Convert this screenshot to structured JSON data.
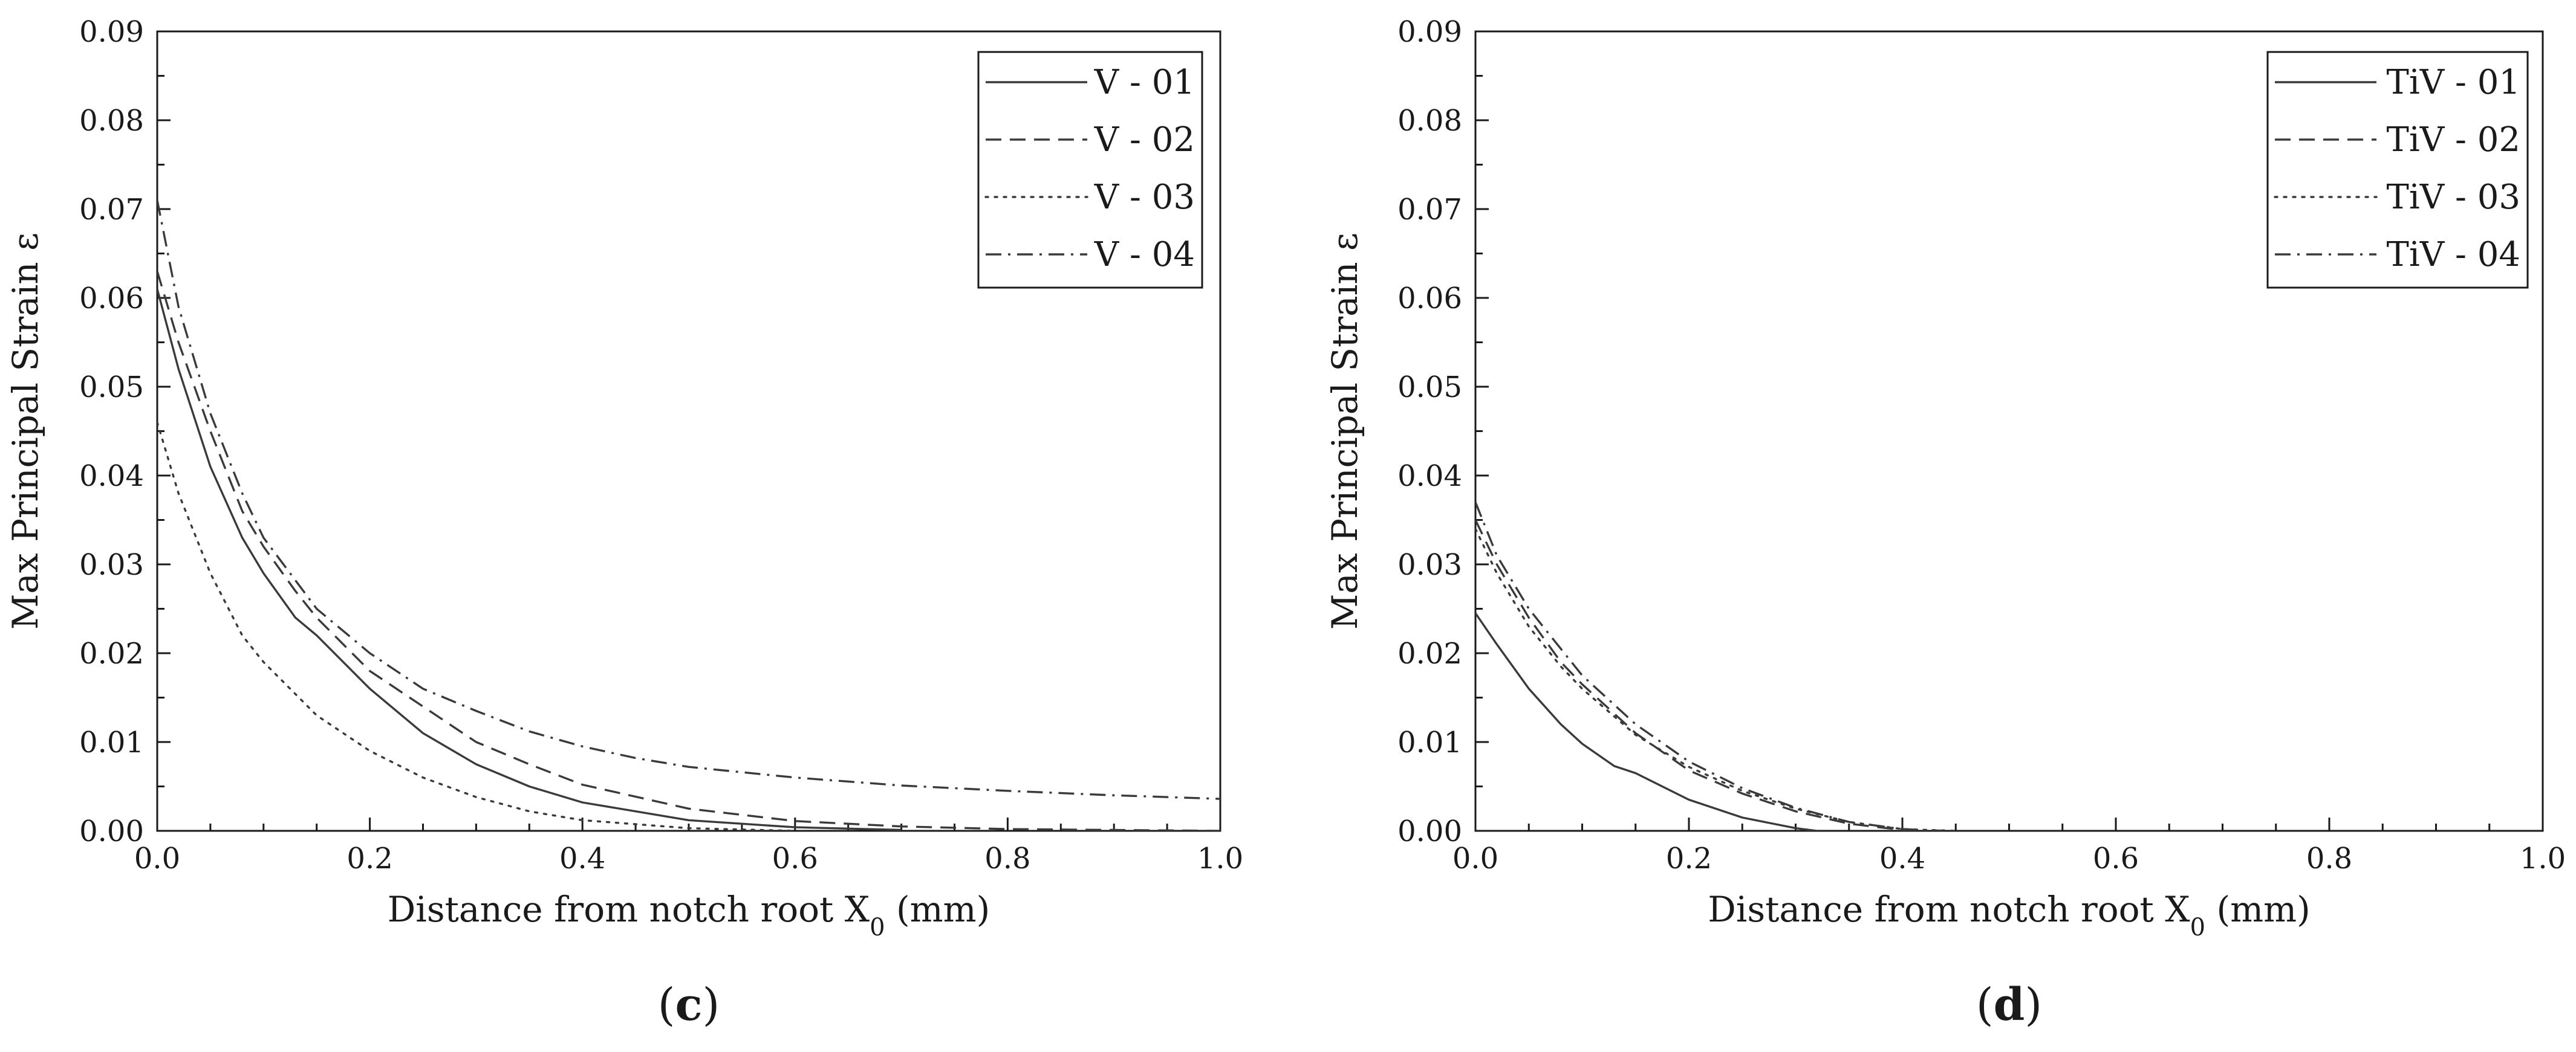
{
  "figure": {
    "panel_labels": [
      "c",
      "d"
    ]
  },
  "style": {
    "ink": "#3a3a3a",
    "axis": "#1a1a1a",
    "background": "#ffffff"
  },
  "chart_data": [
    {
      "id": "c",
      "type": "line",
      "panel_label": "c",
      "title": "",
      "xlabel": "Distance from notch root X",
      "xlabel_sub": "0",
      "xlabel_unit": " (mm)",
      "ylabel": "Max Principal Strain ε",
      "xlim": [
        0.0,
        1.0
      ],
      "ylim": [
        0.0,
        0.09
      ],
      "xticks": [
        0.0,
        0.2,
        0.4,
        0.6,
        0.8,
        1.0
      ],
      "xtick_labels": [
        "0.0",
        "0.2",
        "0.4",
        "0.6",
        "0.8",
        "1.0"
      ],
      "yticks": [
        0.0,
        0.01,
        0.02,
        0.03,
        0.04,
        0.05,
        0.06,
        0.07,
        0.08,
        0.09
      ],
      "ytick_labels": [
        "0.00",
        "0.01",
        "0.02",
        "0.03",
        "0.04",
        "0.05",
        "0.06",
        "0.07",
        "0.08",
        "0.09"
      ],
      "grid": false,
      "legend_position": "top-right",
      "series": [
        {
          "name": "V - 01",
          "dash": "solid",
          "x": [
            0.0,
            0.02,
            0.05,
            0.08,
            0.1,
            0.13,
            0.15,
            0.2,
            0.25,
            0.3,
            0.35,
            0.4,
            0.5,
            0.6,
            0.7
          ],
          "y": [
            0.061,
            0.052,
            0.041,
            0.033,
            0.029,
            0.024,
            0.022,
            0.016,
            0.011,
            0.0075,
            0.005,
            0.0032,
            0.0012,
            0.0004,
            0.0001
          ]
        },
        {
          "name": "V - 02",
          "dash": "dashed",
          "x": [
            0.0,
            0.02,
            0.05,
            0.08,
            0.1,
            0.13,
            0.15,
            0.2,
            0.25,
            0.3,
            0.35,
            0.4,
            0.5,
            0.6,
            0.7,
            0.8,
            1.0
          ],
          "y": [
            0.063,
            0.055,
            0.045,
            0.036,
            0.032,
            0.027,
            0.024,
            0.018,
            0.014,
            0.01,
            0.0075,
            0.0052,
            0.0025,
            0.0011,
            0.0005,
            0.0002,
            0.0
          ]
        },
        {
          "name": "V - 03",
          "dash": "dotted",
          "x": [
            0.0,
            0.02,
            0.05,
            0.08,
            0.1,
            0.15,
            0.2,
            0.25,
            0.3,
            0.35,
            0.4,
            0.5,
            0.6
          ],
          "y": [
            0.046,
            0.038,
            0.029,
            0.022,
            0.019,
            0.013,
            0.009,
            0.006,
            0.0038,
            0.0022,
            0.0012,
            0.0003,
            0.0
          ]
        },
        {
          "name": "V - 04",
          "dash": "dashdot",
          "x": [
            0.0,
            0.02,
            0.05,
            0.08,
            0.1,
            0.15,
            0.2,
            0.25,
            0.3,
            0.35,
            0.4,
            0.45,
            0.5,
            0.6,
            0.7,
            0.8,
            0.9,
            1.0
          ],
          "y": [
            0.071,
            0.059,
            0.047,
            0.038,
            0.033,
            0.025,
            0.02,
            0.016,
            0.0135,
            0.0112,
            0.0095,
            0.0082,
            0.0072,
            0.006,
            0.0051,
            0.0045,
            0.004,
            0.0036
          ]
        }
      ]
    },
    {
      "id": "d",
      "type": "line",
      "panel_label": "d",
      "title": "",
      "xlabel": "Distance from notch root X",
      "xlabel_sub": "0",
      "xlabel_unit": " (mm)",
      "ylabel": "Max Principal Strain ε",
      "xlim": [
        0.0,
        1.0
      ],
      "ylim": [
        0.0,
        0.09
      ],
      "xticks": [
        0.0,
        0.2,
        0.4,
        0.6,
        0.8,
        1.0
      ],
      "xtick_labels": [
        "0.0",
        "0.2",
        "0.4",
        "0.6",
        "0.8",
        "1.0"
      ],
      "yticks": [
        0.0,
        0.01,
        0.02,
        0.03,
        0.04,
        0.05,
        0.06,
        0.07,
        0.08,
        0.09
      ],
      "ytick_labels": [
        "0.00",
        "0.01",
        "0.02",
        "0.03",
        "0.04",
        "0.05",
        "0.06",
        "0.07",
        "0.08",
        "0.09"
      ],
      "grid": false,
      "legend_position": "top-right",
      "series": [
        {
          "name": "TiV - 01",
          "dash": "solid",
          "x": [
            0.0,
            0.02,
            0.05,
            0.08,
            0.1,
            0.13,
            0.15,
            0.2,
            0.25,
            0.3,
            0.32
          ],
          "y": [
            0.0245,
            0.021,
            0.016,
            0.012,
            0.0098,
            0.0073,
            0.0065,
            0.0035,
            0.0015,
            0.0003,
            0.0
          ]
        },
        {
          "name": "TiV - 02",
          "dash": "dashed",
          "x": [
            0.0,
            0.02,
            0.05,
            0.08,
            0.1,
            0.15,
            0.2,
            0.25,
            0.3,
            0.35,
            0.4,
            0.42
          ],
          "y": [
            0.035,
            0.03,
            0.024,
            0.019,
            0.0165,
            0.011,
            0.0068,
            0.0042,
            0.0022,
            0.0008,
            0.0001,
            0.0
          ]
        },
        {
          "name": "TiV - 03",
          "dash": "dotted",
          "x": [
            0.0,
            0.02,
            0.05,
            0.08,
            0.1,
            0.15,
            0.2,
            0.25,
            0.3,
            0.35,
            0.4,
            0.45
          ],
          "y": [
            0.034,
            0.029,
            0.023,
            0.0185,
            0.016,
            0.0108,
            0.0072,
            0.0045,
            0.0025,
            0.001,
            0.0002,
            0.0
          ]
        },
        {
          "name": "TiV - 04",
          "dash": "dashdot",
          "x": [
            0.0,
            0.02,
            0.05,
            0.08,
            0.1,
            0.15,
            0.2,
            0.25,
            0.3,
            0.35,
            0.4,
            0.44
          ],
          "y": [
            0.037,
            0.031,
            0.025,
            0.0205,
            0.0175,
            0.012,
            0.0078,
            0.0048,
            0.0026,
            0.001,
            0.0002,
            0.0
          ]
        }
      ]
    }
  ]
}
